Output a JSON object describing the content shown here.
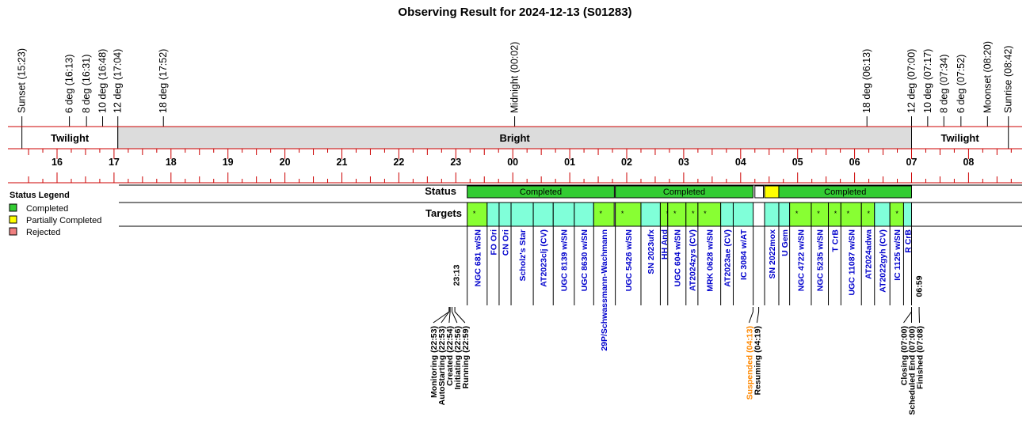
{
  "chart_data": {
    "type": "timeline",
    "title": "Observing Result for 2024-12-13 (S01283)",
    "time_axis": {
      "start_hour": 15.3,
      "end_hour": 32.75,
      "hour_ticks": [
        {
          "h": 16,
          "label": "16"
        },
        {
          "h": 17,
          "label": "17"
        },
        {
          "h": 18,
          "label": "18"
        },
        {
          "h": 19,
          "label": "19"
        },
        {
          "h": 20,
          "label": "20"
        },
        {
          "h": 21,
          "label": "21"
        },
        {
          "h": 22,
          "label": "22"
        },
        {
          "h": 23,
          "label": "23"
        },
        {
          "h": 24,
          "label": "00"
        },
        {
          "h": 25,
          "label": "01"
        },
        {
          "h": 26,
          "label": "02"
        },
        {
          "h": 27,
          "label": "03"
        },
        {
          "h": 28,
          "label": "04"
        },
        {
          "h": 29,
          "label": "05"
        },
        {
          "h": 30,
          "label": "06"
        },
        {
          "h": 31,
          "label": "07"
        },
        {
          "h": 32,
          "label": "08"
        }
      ]
    },
    "sky_events": [
      {
        "label": "Sunset (15:23)",
        "h": 15.383,
        "color": "#000000"
      },
      {
        "label": "6 deg (16:13)",
        "h": 16.217,
        "color": "#000000"
      },
      {
        "label": "8 deg (16:31)",
        "h": 16.517,
        "color": "#000000"
      },
      {
        "label": "10 deg (16:48)",
        "h": 16.8,
        "color": "#000000"
      },
      {
        "label": "12 deg (17:04)",
        "h": 17.067,
        "color": "#000000"
      },
      {
        "label": "18 deg (17:52)",
        "h": 17.867,
        "color": "#000000"
      },
      {
        "label": "Midnight (00:02)",
        "h": 24.033,
        "color": "#000000"
      },
      {
        "label": "18 deg (06:13)",
        "h": 30.217,
        "color": "#000000"
      },
      {
        "label": "12 deg (07:00)",
        "h": 31.0,
        "color": "#000000"
      },
      {
        "label": "10 deg (07:17)",
        "h": 31.283,
        "color": "#000000"
      },
      {
        "label": "8 deg (07:34)",
        "h": 31.567,
        "color": "#000000"
      },
      {
        "label": "6 deg (07:52)",
        "h": 31.867,
        "color": "#000000"
      },
      {
        "label": "Moonset (08:20)",
        "h": 32.333,
        "color": "#0000cc"
      },
      {
        "label": "Sunrise (08:42)",
        "h": 32.7,
        "color": "#000000"
      }
    ],
    "sky_bands": [
      {
        "label": "Twilight",
        "from": 15.383,
        "to": 17.067,
        "fill": "#ffffff"
      },
      {
        "label": "Bright",
        "from": 17.067,
        "to": 31.0,
        "fill": "#dcdcdc"
      },
      {
        "label": "Twilight",
        "from": 31.0,
        "to": 32.7,
        "fill": "#ffffff"
      }
    ],
    "row_labels": {
      "status": "Status",
      "targets": "Targets"
    },
    "legend": {
      "title": "Status Legend",
      "items": [
        {
          "label": "Completed",
          "color": "#33cc33"
        },
        {
          "label": "Partially Completed",
          "color": "#ffff00"
        },
        {
          "label": "Rejected",
          "color": "#f08080"
        }
      ]
    },
    "status_segments": [
      {
        "from": 23.2,
        "to": 25.783,
        "label": "Completed",
        "color": "#33cc33"
      },
      {
        "from": 25.8,
        "to": 28.217,
        "label": "Completed",
        "color": "#33cc33"
      },
      {
        "from": 28.25,
        "to": 28.4,
        "label": "",
        "color": "#ffffff"
      },
      {
        "from": 28.42,
        "to": 28.67,
        "label": "",
        "color": "#ffff00"
      },
      {
        "from": 28.67,
        "to": 31.0,
        "label": "Completed",
        "color": "#33cc33"
      }
    ],
    "targets": [
      {
        "name": "NGC 681 w/SN",
        "from": 23.2,
        "to": 23.55,
        "color": "#88ff33",
        "star": true
      },
      {
        "name": "FO Ori",
        "from": 23.55,
        "to": 23.76,
        "color": "#80ffd9",
        "star": false
      },
      {
        "name": "CN Ori",
        "from": 23.76,
        "to": 23.97,
        "color": "#80ffd9",
        "star": false
      },
      {
        "name": "Scholz's Star",
        "from": 23.97,
        "to": 24.36,
        "color": "#80ffd9",
        "star": false
      },
      {
        "name": "AT2023clj (CV)",
        "from": 24.36,
        "to": 24.71,
        "color": "#80ffd9",
        "star": false
      },
      {
        "name": "UGC 8139 w/SN",
        "from": 24.71,
        "to": 25.08,
        "color": "#80ffd9",
        "star": false
      },
      {
        "name": "UGC 8630 w/SN",
        "from": 25.08,
        "to": 25.42,
        "color": "#80ffd9",
        "star": false
      },
      {
        "name": "29P/Schwassmann-Wachmann",
        "from": 25.42,
        "to": 25.78,
        "color": "#88ff33",
        "star": true
      },
      {
        "name": "UGC 5426 w/SN",
        "from": 25.8,
        "to": 26.25,
        "color": "#88ff33",
        "star": true
      },
      {
        "name": "SN 2023ufx",
        "from": 26.25,
        "to": 26.59,
        "color": "#80ffd9",
        "star": false
      },
      {
        "name": "HH And",
        "from": 26.59,
        "to": 26.72,
        "color": "#88ff33",
        "star": true
      },
      {
        "name": "UGC 604 w/SN",
        "from": 26.72,
        "to": 27.04,
        "color": "#88ff33",
        "star": true
      },
      {
        "name": "AT2024zys (CV)",
        "from": 27.04,
        "to": 27.25,
        "color": "#88ff33",
        "star": true
      },
      {
        "name": "MRK 0628 w/SN",
        "from": 27.25,
        "to": 27.65,
        "color": "#88ff33",
        "star": true
      },
      {
        "name": "AT2023ae (CV)",
        "from": 27.65,
        "to": 27.87,
        "color": "#80ffd9",
        "star": false
      },
      {
        "name": "IC 3084 w/AT",
        "from": 27.87,
        "to": 28.22,
        "color": "#80ffd9",
        "star": false
      },
      {
        "name": "SN 2022mox",
        "from": 28.42,
        "to": 28.67,
        "color": "#80ffd9",
        "star": false
      },
      {
        "name": "U Gem",
        "from": 28.67,
        "to": 28.86,
        "color": "#80ffd9",
        "star": false
      },
      {
        "name": "NGC 4722 w/SN",
        "from": 28.86,
        "to": 29.24,
        "color": "#88ff33",
        "star": true
      },
      {
        "name": "NGC 5235 w/SN",
        "from": 29.24,
        "to": 29.54,
        "color": "#88ff33",
        "star": true
      },
      {
        "name": "T CrB",
        "from": 29.54,
        "to": 29.76,
        "color": "#88ff33",
        "star": true
      },
      {
        "name": "UGC 11087 w/SN",
        "from": 29.76,
        "to": 30.12,
        "color": "#88ff33",
        "star": true
      },
      {
        "name": "AT2024adwa",
        "from": 30.12,
        "to": 30.35,
        "color": "#88ff33",
        "star": true
      },
      {
        "name": "AT2022gyh (CV)",
        "from": 30.35,
        "to": 30.62,
        "color": "#80ffd9",
        "star": false
      },
      {
        "name": "IC 1125 w/SN",
        "from": 30.62,
        "to": 30.86,
        "color": "#88ff33",
        "star": true
      },
      {
        "name": "R CrB",
        "from": 30.86,
        "to": 31.0,
        "color": "#80ffd9",
        "star": false
      }
    ],
    "start_time_label": "23:13",
    "end_time_label": "06:59",
    "bottom_events": [
      {
        "label": "Monitoring (22:53)",
        "h": 22.883,
        "color": "#000000"
      },
      {
        "label": "AutoStarting (22:53)",
        "h": 22.883,
        "color": "#000000"
      },
      {
        "label": "Created (22:54)",
        "h": 22.9,
        "color": "#000000"
      },
      {
        "label": "Initiating (22:56)",
        "h": 22.933,
        "color": "#000000"
      },
      {
        "label": "Running (22:59)",
        "h": 22.983,
        "color": "#000000"
      },
      {
        "label": "Suspended (04:13)",
        "h": 28.217,
        "color": "#ff8800"
      },
      {
        "label": "Resuming (04:19)",
        "h": 28.317,
        "color": "#000000"
      },
      {
        "label": "Closing (07:00)",
        "h": 31.0,
        "color": "#000000"
      },
      {
        "label": "Scheduled End (07:00)",
        "h": 31.0,
        "color": "#000000"
      },
      {
        "label": "Finished (07:08)",
        "h": 31.133,
        "color": "#000000"
      }
    ]
  }
}
